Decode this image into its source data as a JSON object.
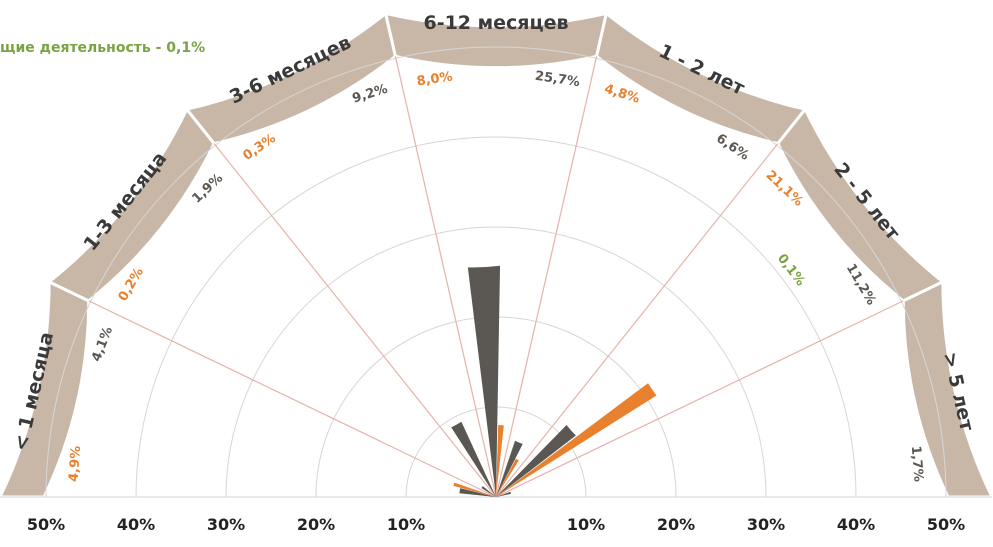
{
  "chart_data": {
    "type": "polar-bar",
    "legend_note": "щие деятельность - 0,1%",
    "categories": [
      "< 1 месяца",
      "1-3 месяца",
      "3-6 месяцев",
      "6-12 месяцев",
      "1 - 2 лет",
      "2 - 5 лет",
      "> 5 лет"
    ],
    "series": [
      {
        "color": "#5b5752",
        "values": [
          4.1,
          1.9,
          9.2,
          25.7,
          6.6,
          11.2,
          1.7
        ],
        "labels": [
          "4,1%",
          "1,9%",
          "9,2%",
          "25,7%",
          "6,6%",
          "11,2%",
          "1,7%"
        ]
      },
      {
        "color": "#e8802e",
        "values": [
          4.9,
          0.2,
          0.3,
          8.0,
          4.8,
          21.1,
          null
        ],
        "labels": [
          "4,9%",
          "0,2%",
          "0,3%",
          "8,0%",
          "4,8%",
          "21,1%",
          ""
        ]
      },
      {
        "color": "#7aa344",
        "values": [
          null,
          null,
          null,
          null,
          null,
          0.1,
          null
        ],
        "labels": [
          "",
          "",
          "",
          "",
          "",
          "0,1%",
          ""
        ]
      }
    ],
    "radial_ticks_left": [
      "50%",
      "40%",
      "30%",
      "20%",
      "10%"
    ],
    "radial_ticks_right": [
      "10%",
      "20%",
      "30%",
      "40%",
      "50%"
    ],
    "rmax": 50,
    "grid": true
  }
}
